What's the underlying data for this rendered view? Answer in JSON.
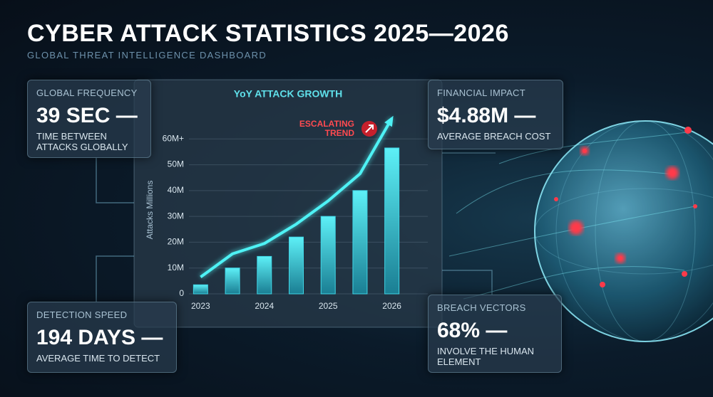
{
  "header": {
    "title": "CYBER ATTACK STATISTICS 2025—2026",
    "subtitle": "GLOBAL THREAT INTELLIGENCE DASHBOARD"
  },
  "cards": [
    {
      "label": "GLOBAL FREQUENCY",
      "value": "39 SEC —",
      "description": "TIME BETWEEN ATTACKS GLOBALLY"
    },
    {
      "label": "FINANCIAL IMPACT",
      "value": "$4.88M —",
      "description": "AVERAGE BREACH COST"
    },
    {
      "label": "DETECTION SPEED",
      "value": "194 DAYS —",
      "description": "AVERAGE TIME TO DETECT"
    },
    {
      "label": "BREACH VECTORS",
      "value": "68% —",
      "description": "INVOLVE THE HUMAN ELEMENT"
    }
  ],
  "chart_data": {
    "type": "bar",
    "title": "YoY ATTACK GROWTH",
    "y_label": "Attacks Millions",
    "annotation": "ESCALATING TREND",
    "categories": [
      "2023",
      null,
      "2024",
      null,
      "2025",
      null,
      "2026"
    ],
    "values": [
      3.5,
      10,
      14.5,
      22,
      30,
      40,
      56.5
    ],
    "trend_values": [
      6.5,
      15.5,
      19.5,
      27,
      36,
      46.5,
      68
    ],
    "color": "#3fd6e6",
    "trend_color": "#4ef2f5",
    "ylim": [
      0,
      70
    ],
    "yticks": [
      0,
      {
        "value": 10,
        "label": "10M"
      },
      {
        "value": 20,
        "label": "20M"
      },
      {
        "value": 30,
        "label": "30M"
      },
      {
        "value": 40,
        "label": "40M"
      },
      {
        "value": 50,
        "label": "50M"
      },
      {
        "value": 60,
        "label": "60M+"
      }
    ],
    "grid": true
  }
}
